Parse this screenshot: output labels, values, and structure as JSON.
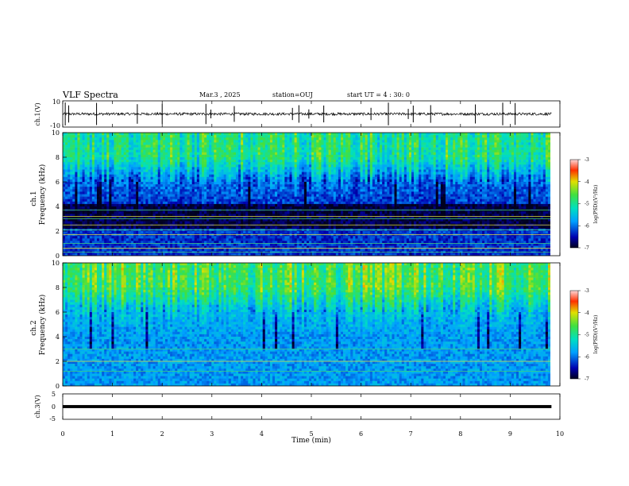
{
  "header": {
    "title": "VLF Spectra",
    "date": "Mar.3 , 2025",
    "station": "station=OUJ",
    "start": "start UT = 4 : 30: 0"
  },
  "chart_data": [
    {
      "type": "line",
      "panel": "ch1-waveform",
      "ylabel": "ch.1(V)",
      "ylim": [
        -10,
        10
      ],
      "yticks": [
        "10",
        "-10"
      ],
      "baseline": 0,
      "noise_amplitude": 1,
      "spikes_min": [
        0.05,
        0.12,
        0.68,
        1.5,
        2.0,
        2.88,
        2.98,
        3.45,
        4.62,
        4.75,
        4.95,
        5.25,
        6.2,
        6.55,
        6.95,
        7.05,
        7.4,
        8.3,
        8.85,
        9.1
      ],
      "color": "#000000"
    },
    {
      "type": "heatmap",
      "panel": "ch1-spectrogram",
      "ylabel": "ch.1\nFrequency (kHz)",
      "ylim": [
        0,
        10
      ],
      "yticks": [
        "0",
        "2",
        "4",
        "6",
        "8",
        "10"
      ],
      "xlim": [
        0,
        9.83
      ],
      "colorbar": {
        "label": "log(PSD)(V²/Hz)",
        "ticks": [
          "-3",
          "-4",
          "-5",
          "-6",
          "-7"
        ],
        "range": [
          -7,
          -3
        ]
      },
      "background_log_psd": -6.3,
      "upper_band_log_psd": -5.2,
      "narrowband_lines_khz": [
        0.3,
        0.6,
        1.0,
        1.7,
        2.1,
        2.5,
        3.0,
        3.2,
        3.7
      ]
    },
    {
      "type": "heatmap",
      "panel": "ch2-spectrogram",
      "ylabel": "ch.2\nFrequency (kHz)",
      "ylim": [
        0,
        10
      ],
      "yticks": [
        "0",
        "2",
        "4",
        "6",
        "8",
        "10"
      ],
      "xlim": [
        0,
        9.83
      ],
      "colorbar": {
        "label": "log(PSD)(V²/Hz)",
        "ticks": [
          "-3",
          "-4",
          "-5",
          "-6",
          "-7"
        ],
        "range": [
          -7,
          -3
        ]
      },
      "background_log_psd": -5.8,
      "upper_band_log_psd": -4.9,
      "narrowband_lines_khz": [
        1.2,
        2.0,
        3.0
      ]
    },
    {
      "type": "line",
      "panel": "ch3-waveform",
      "ylabel": "ch.3(V)",
      "ylim": [
        -5,
        5
      ],
      "yticks": [
        "5",
        "0",
        "-5"
      ],
      "baseline": 0,
      "noise_amplitude": 0.3,
      "color": "#000000"
    }
  ],
  "xaxis": {
    "label": "Time (min)",
    "ticks": [
      "0",
      "1",
      "2",
      "3",
      "4",
      "5",
      "6",
      "7",
      "8",
      "9",
      "10"
    ],
    "range": [
      0,
      10
    ]
  }
}
